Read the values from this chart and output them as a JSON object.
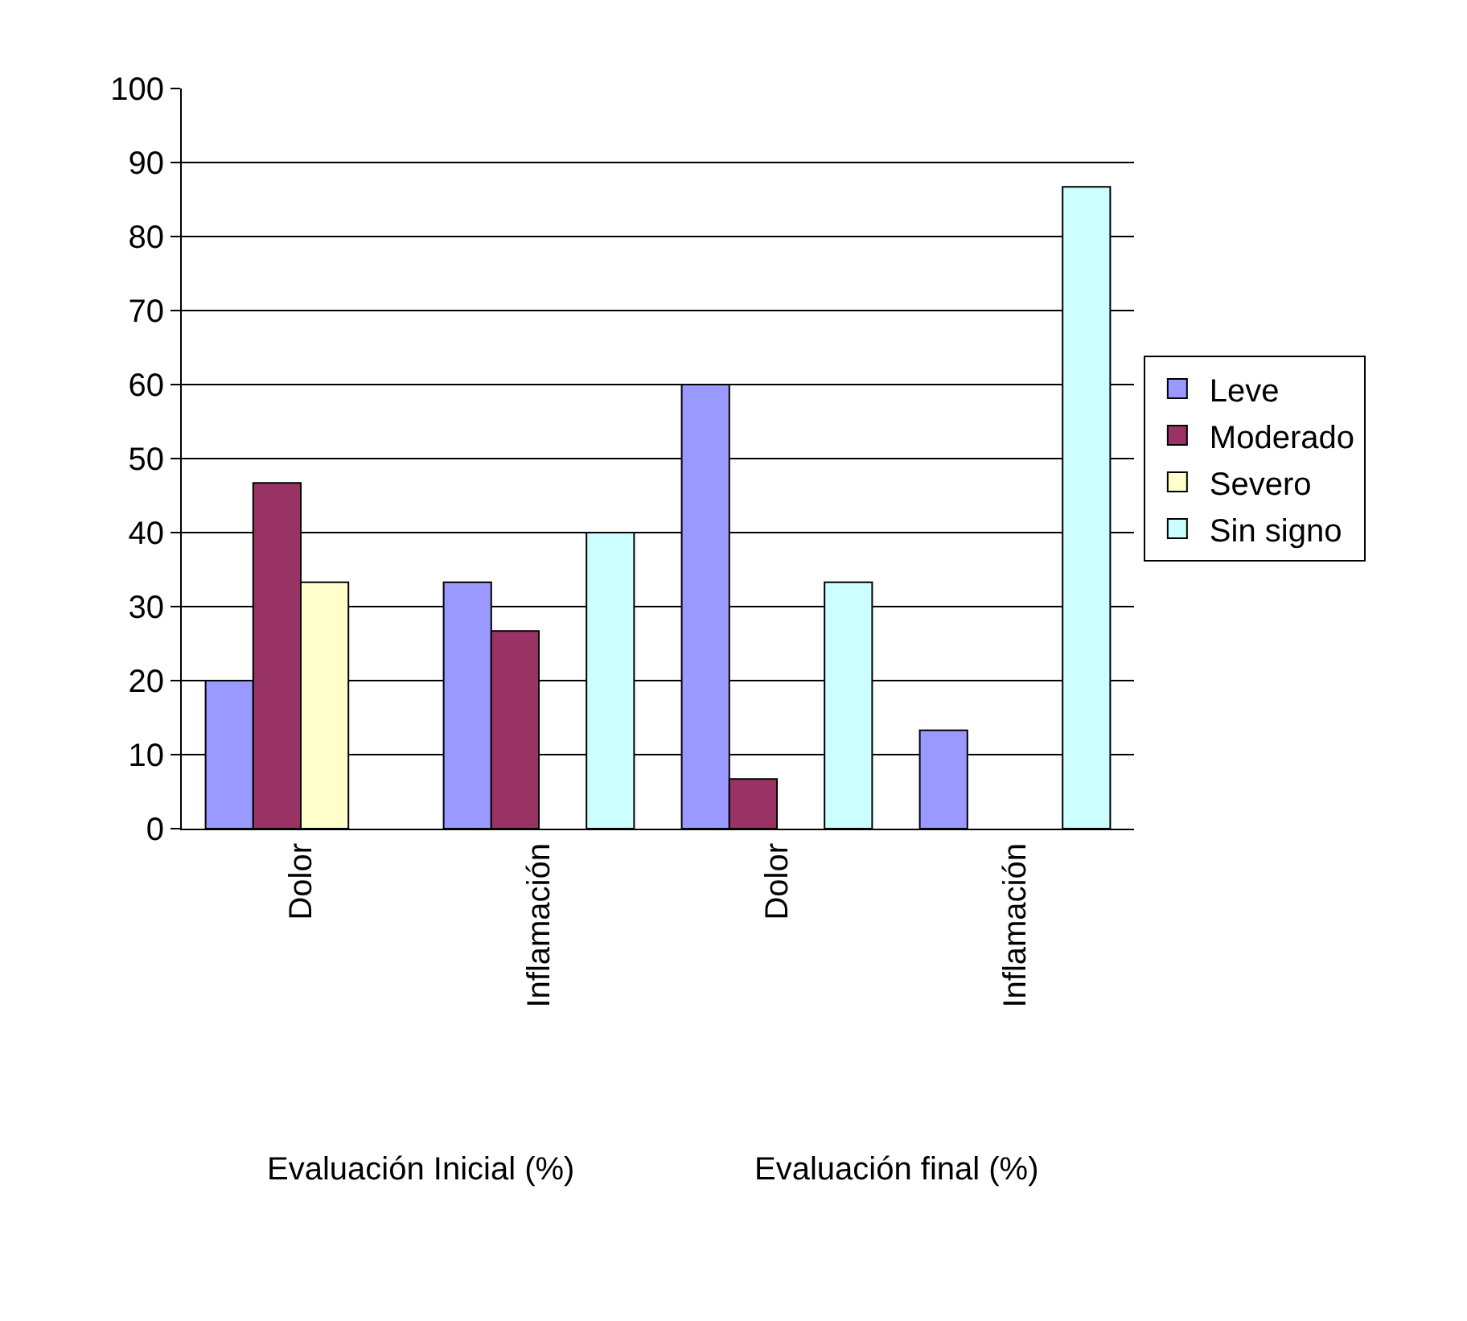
{
  "chart_data": {
    "type": "bar",
    "categories": [
      "Dolor",
      "Inflamación",
      "Dolor",
      "Inflamación"
    ],
    "series": [
      {
        "name": "Leve",
        "color": "#9999ff",
        "values": [
          20,
          33.3,
          60,
          13.3
        ]
      },
      {
        "name": "Moderado",
        "color": "#993366",
        "values": [
          46.7,
          26.7,
          6.7,
          null
        ]
      },
      {
        "name": "Severo",
        "color": "#ffffcc",
        "values": [
          33.3,
          null,
          null,
          null
        ]
      },
      {
        "name": "Sin signo",
        "color": "#ccffff",
        "values": [
          null,
          40,
          33.3,
          86.7
        ]
      }
    ],
    "annotations": [
      "Evaluación Inicial (%)",
      "Evaluación final (%)"
    ],
    "ylim": [
      0,
      100
    ],
    "yticks": [
      0,
      10,
      20,
      30,
      40,
      50,
      60,
      70,
      80,
      90,
      100
    ],
    "grid": "y",
    "legend": "right"
  }
}
